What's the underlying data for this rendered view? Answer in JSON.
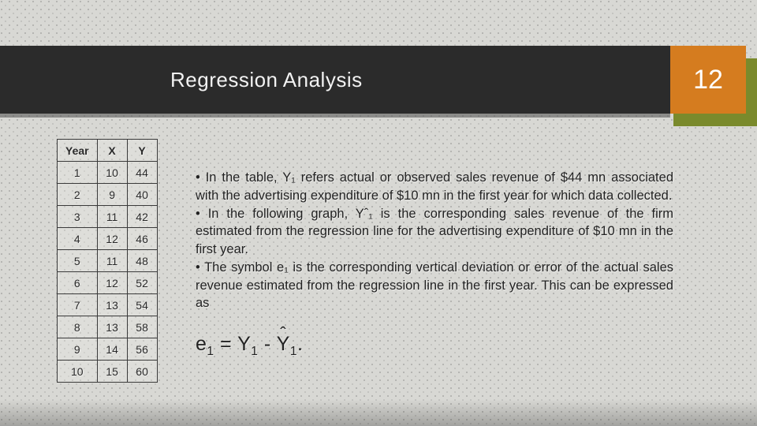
{
  "slide": {
    "title": "Regression Analysis",
    "page_number": "12",
    "colors": {
      "title_bar": "#2b2b2b",
      "title_text": "#f2f2f2",
      "pagenum_bg": "#d57c1f",
      "pagenum_under": "#7a8a2c",
      "pagenum_text": "#ffffff",
      "table_border": "#3a3a3a",
      "body_text": "#222222",
      "slide_bg": "#d8d8d4"
    },
    "fonts": {
      "title_size_pt": 26,
      "body_size_pt": 16.5,
      "equation_size_pt": 25,
      "table_size_pt": 14
    }
  },
  "table": {
    "type": "table",
    "columns": [
      "Year",
      "X",
      "Y"
    ],
    "rows": [
      [
        "1",
        "10",
        "44"
      ],
      [
        "2",
        "9",
        "40"
      ],
      [
        "3",
        "11",
        "42"
      ],
      [
        "4",
        "12",
        "46"
      ],
      [
        "5",
        "11",
        "48"
      ],
      [
        "6",
        "12",
        "52"
      ],
      [
        "7",
        "13",
        "54"
      ],
      [
        "8",
        "13",
        "58"
      ],
      [
        "9",
        "14",
        "56"
      ],
      [
        "10",
        "15",
        "60"
      ]
    ]
  },
  "bullets": {
    "b1": "• In the table, Y₁ refers actual or observed sales revenue of $44 mn associated with the advertising expenditure of $10 mn in the first year for which data collected.",
    "b2": "• In the following graph, Yˆ₁ is the corresponding sales revenue of the firm estimated from the regression line for the advertising expenditure of $10 mn in the first year.",
    "b3": "• The symbol e₁ is the corresponding vertical deviation or error of the actual sales revenue estimated from the regression line in the first year. This can be expressed as"
  },
  "equation": {
    "plain": "e₁ = Y₁ - Yˆ₁.",
    "lhs_var": "e",
    "lhs_sub": "1",
    "rhs1_var": "Y",
    "rhs1_sub": "1",
    "rhs2_var": "Y",
    "rhs2_sub": "1"
  }
}
